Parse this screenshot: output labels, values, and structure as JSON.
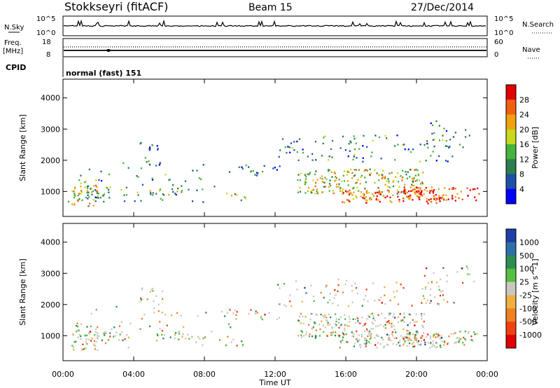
{
  "header": {
    "station": "Stokkseyri (fitACF)",
    "beam": "Beam 15",
    "date": "27/Dec/2014"
  },
  "top_panels": {
    "nsky_label": "N.Sky",
    "nsky_top": "10^5",
    "nsky_bottom": "10^0",
    "nsearch_label": "N.Search",
    "nsearch_right_top": "10^5",
    "nsearch_right_bottom": "10^0",
    "freq_label_1": "Freq.",
    "freq_label_2": "[MHz]",
    "freq_top": "18",
    "freq_bottom": "8",
    "nave_label": "Nave",
    "nave_right_top": "60",
    "nave_right_bottom": "0",
    "cpid_label": "CPID",
    "cpid_value": "normal (fast) 151"
  },
  "chart_data": [
    {
      "type": "heatmap",
      "name": "power",
      "ylabel": "Slant Range [km]",
      "ylim": [
        200,
        4600
      ],
      "yticks": [
        "1000",
        "2000",
        "3000",
        "4000"
      ],
      "colorbar_label": "Power [dB]",
      "colorbar_ticks": [
        "4",
        "8",
        "12",
        "16",
        "20",
        "24",
        "28"
      ],
      "colors": [
        "#0000ff",
        "#1f4fa8",
        "#2e7d4f",
        "#45b43c",
        "#c8d81e",
        "#f0a010",
        "#f06010",
        "#e00000"
      ]
    },
    {
      "type": "heatmap",
      "name": "velocity",
      "ylabel": "Slant Range [km]",
      "ylim": [
        200,
        4600
      ],
      "yticks": [
        "1000",
        "2000",
        "3000",
        "4000"
      ],
      "colorbar_label": "Velocity [m s^-1]",
      "colorbar_ticks": [
        "1000",
        "500",
        "100",
        "25",
        "-25",
        "-100",
        "-500",
        "-1000"
      ],
      "colors": [
        "#1f3fa8",
        "#2e6fa8",
        "#2e8d4f",
        "#55c040",
        "#c8c8c0",
        "#f0b040",
        "#f08020",
        "#f04010",
        "#e00000"
      ]
    }
  ],
  "x_axis": {
    "label": "Time UT",
    "ticks": [
      "00:00",
      "04:00",
      "08:00",
      "12:00",
      "16:00",
      "20:00",
      "00:00"
    ]
  }
}
